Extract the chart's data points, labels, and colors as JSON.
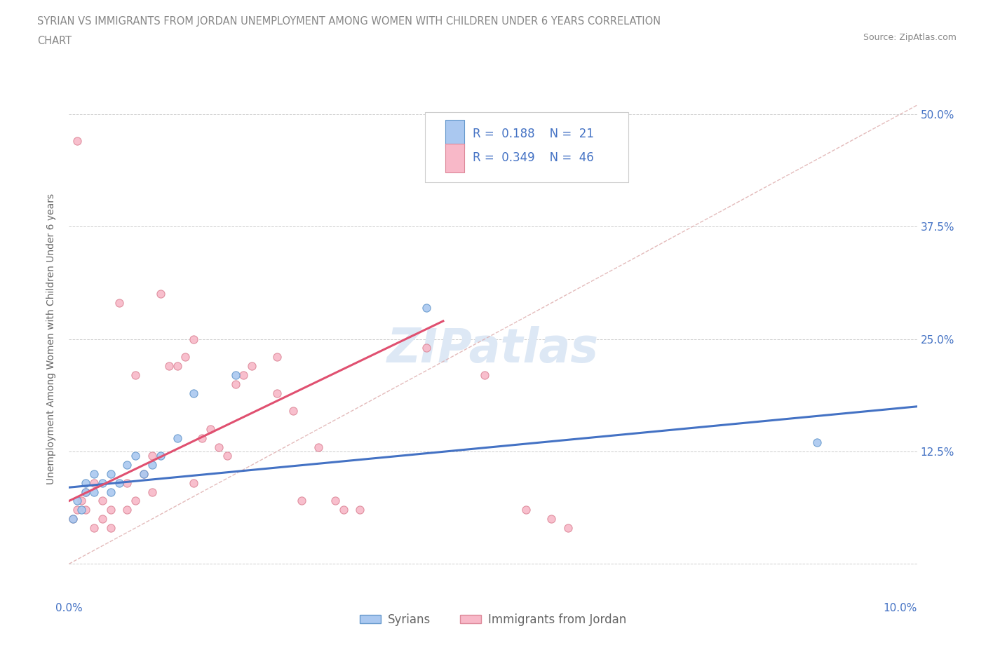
{
  "title_line1": "SYRIAN VS IMMIGRANTS FROM JORDAN UNEMPLOYMENT AMONG WOMEN WITH CHILDREN UNDER 6 YEARS CORRELATION",
  "title_line2": "CHART",
  "source_text": "Source: ZipAtlas.com",
  "ylabel": "Unemployment Among Women with Children Under 6 years",
  "xlim": [
    0.0,
    0.102
  ],
  "ylim": [
    -0.04,
    0.54
  ],
  "syrians_x": [
    0.0005,
    0.001,
    0.0015,
    0.002,
    0.002,
    0.003,
    0.003,
    0.004,
    0.005,
    0.005,
    0.006,
    0.007,
    0.008,
    0.009,
    0.01,
    0.011,
    0.013,
    0.015,
    0.02,
    0.043,
    0.09
  ],
  "syrians_y": [
    0.05,
    0.07,
    0.06,
    0.08,
    0.09,
    0.1,
    0.08,
    0.09,
    0.1,
    0.08,
    0.09,
    0.11,
    0.12,
    0.1,
    0.11,
    0.12,
    0.14,
    0.19,
    0.21,
    0.285,
    0.135
  ],
  "jordan_x": [
    0.0005,
    0.001,
    0.001,
    0.0015,
    0.002,
    0.002,
    0.003,
    0.003,
    0.004,
    0.004,
    0.005,
    0.005,
    0.006,
    0.007,
    0.007,
    0.008,
    0.008,
    0.009,
    0.01,
    0.01,
    0.011,
    0.012,
    0.013,
    0.014,
    0.015,
    0.015,
    0.016,
    0.017,
    0.018,
    0.019,
    0.02,
    0.021,
    0.022,
    0.025,
    0.025,
    0.027,
    0.028,
    0.03,
    0.032,
    0.033,
    0.035,
    0.043,
    0.05,
    0.055,
    0.058,
    0.06
  ],
  "jordan_y": [
    0.05,
    0.47,
    0.06,
    0.07,
    0.08,
    0.06,
    0.04,
    0.09,
    0.05,
    0.07,
    0.06,
    0.04,
    0.29,
    0.09,
    0.06,
    0.21,
    0.07,
    0.1,
    0.12,
    0.08,
    0.3,
    0.22,
    0.22,
    0.23,
    0.25,
    0.09,
    0.14,
    0.15,
    0.13,
    0.12,
    0.2,
    0.21,
    0.22,
    0.19,
    0.23,
    0.17,
    0.07,
    0.13,
    0.07,
    0.06,
    0.06,
    0.24,
    0.21,
    0.06,
    0.05,
    0.04
  ],
  "syrian_dot_color": "#aac8f0",
  "syrian_edge_color": "#6699cc",
  "jordan_dot_color": "#f8b8c8",
  "jordan_edge_color": "#dd8899",
  "syrian_line_color": "#4472c4",
  "jordan_line_color": "#e05070",
  "ref_line_color": "#ddaaaa",
  "legend_r_syrian": "0.188",
  "legend_n_syrian": "21",
  "legend_r_jordan": "0.349",
  "legend_n_jordan": "46",
  "background_color": "#ffffff",
  "grid_color": "#cccccc",
  "title_color": "#888888",
  "axis_label_color": "#666666",
  "tick_label_color": "#4472c4",
  "watermark_color": "#dde8f5"
}
